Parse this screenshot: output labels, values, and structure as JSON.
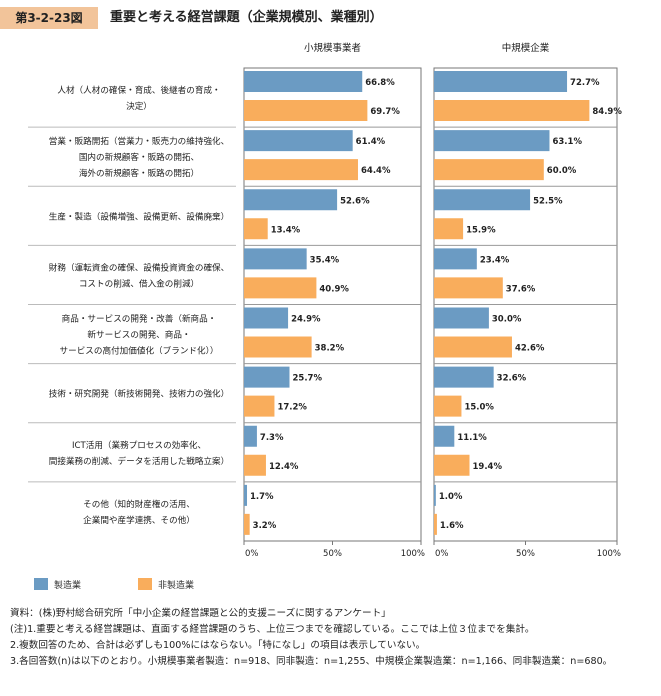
{
  "header": {
    "figure_number": "第3-2-23図",
    "title": "重要と考える経営課題（企業規模別、業種別）"
  },
  "colors": {
    "manufacturing": "#6b9bc3",
    "non_manufacturing": "#f9ad5c",
    "badge": "#f2c49a"
  },
  "chart_data": {
    "type": "bar",
    "orientation": "horizontal",
    "categories": [
      [
        "人材（人材の確保・育成、後継者の育成・",
        "決定）"
      ],
      [
        "営業・販路開拓（営業力・販売力の維持強化、",
        "国内の新規顧客・販路の開拓、",
        "海外の新規顧客・販路の開拓）"
      ],
      [
        "生産・製造（設備増強、設備更新、設備廃棄）"
      ],
      [
        "財務（運転資金の確保、設備投資資金の確保、",
        "コストの削減、借入金の削減）"
      ],
      [
        "商品・サービスの開発・改善（新商品・",
        "新サービスの開発、商品・",
        "サービスの高付加価値化（ブランド化））"
      ],
      [
        "技術・研究開発（新技術開発、技術力の強化）"
      ],
      [
        "ICT活用（業務プロセスの効率化、",
        "間接業務の削減、データを活用した戦略立案）"
      ],
      [
        "その他（知的財産権の活用、",
        "企業間や産学連携、その他）"
      ]
    ],
    "panels": [
      {
        "title": "小規模事業者",
        "series": [
          {
            "name": "製造業",
            "values": [
              66.8,
              61.4,
              52.6,
              35.4,
              24.9,
              25.7,
              7.3,
              1.7
            ]
          },
          {
            "name": "非製造業",
            "values": [
              69.7,
              64.4,
              13.4,
              40.9,
              38.2,
              17.2,
              12.4,
              3.2
            ]
          }
        ]
      },
      {
        "title": "中規模企業",
        "series": [
          {
            "name": "製造業",
            "values": [
              72.7,
              63.1,
              52.5,
              23.4,
              30.0,
              32.6,
              11.1,
              1.0
            ]
          },
          {
            "name": "非製造業",
            "values": [
              84.9,
              60.0,
              15.9,
              37.6,
              42.6,
              15.0,
              19.4,
              1.6
            ]
          }
        ]
      }
    ],
    "x_ticks": [
      "0%",
      "50%",
      "100%"
    ],
    "xlim": [
      0,
      100
    ],
    "value_suffix": "%",
    "legend": {
      "placement": "bottom-left",
      "entries": [
        "製造業",
        "非製造業"
      ]
    }
  },
  "notes": [
    "資料：(株)野村総合研究所「中小企業の経営課題と公的支援ニーズに関するアンケート」",
    "(注)1.重要と考える経営課題は、直面する経営課題のうち、上位三つまでを確認している。ここでは上位３位までを集計。",
    "2.複数回答のため、合計は必ずしも100%にはならない。「特になし」の項目は表示していない。",
    "3.各回答数(n)は以下のとおり。小規模事業者製造：n=918、同非製造：n=1,255、中規模企業製造業：n=1,166、同非製造業：n=680。"
  ]
}
